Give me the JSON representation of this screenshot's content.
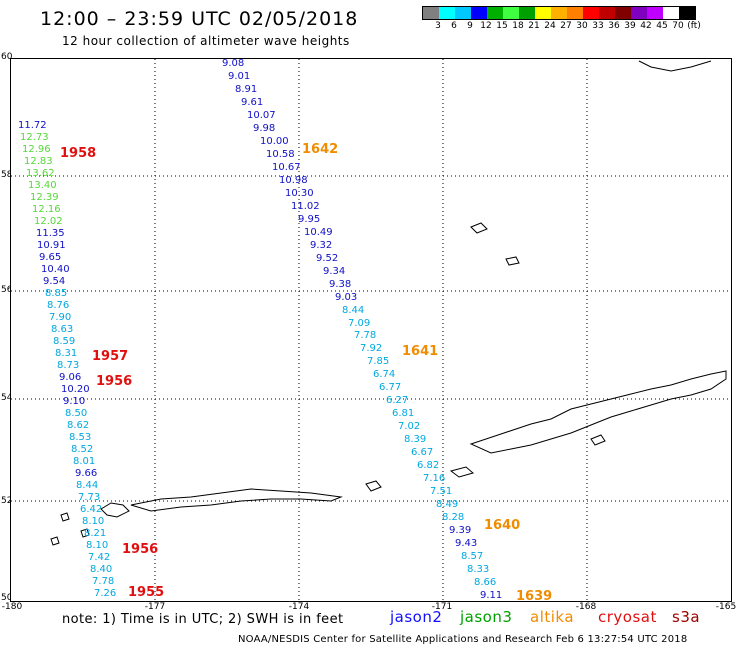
{
  "header": {
    "title": "12:00 – 23:59 UTC 02/05/2018",
    "subtitle": "12 hour collection of altimeter wave heights"
  },
  "color_scale": {
    "swatches": [
      "#808080",
      "#00ffff",
      "#00c8ff",
      "#0000ff",
      "#00b000",
      "#40ff40",
      "#00a000",
      "#ffff00",
      "#ffb000",
      "#ff8000",
      "#ff0000",
      "#c00000",
      "#800000",
      "#8000c0",
      "#c000ff",
      "#ffffff",
      "#000000"
    ],
    "labels": [
      "3",
      "6",
      "9",
      "12",
      "15",
      "18",
      "21",
      "24",
      "27",
      "30",
      "33",
      "36",
      "39",
      "42",
      "45",
      "70",
      "(ft)"
    ]
  },
  "map": {
    "y_ticks": [
      "60",
      "58",
      "56",
      "54",
      "52",
      "50"
    ],
    "x_ticks": [
      "-180",
      "-177",
      "-174",
      "-171",
      "-168",
      "-165"
    ],
    "pass_1958": [
      {
        "v": "11.72",
        "c": "blue"
      },
      {
        "v": "12.73",
        "c": "green"
      },
      {
        "v": "12.96",
        "c": "green"
      },
      {
        "v": "12.83",
        "c": "green"
      },
      {
        "v": "13.62",
        "c": "green"
      },
      {
        "v": "13.40",
        "c": "green"
      },
      {
        "v": "12.39",
        "c": "green"
      },
      {
        "v": "12.16",
        "c": "green"
      },
      {
        "v": "12.02",
        "c": "green"
      },
      {
        "v": "11.35",
        "c": "blue"
      },
      {
        "v": "10.91",
        "c": "blue"
      },
      {
        "v": "9.65",
        "c": "blue"
      },
      {
        "v": "10.40",
        "c": "blue"
      },
      {
        "v": "9.54",
        "c": "blue"
      },
      {
        "v": "8.85",
        "c": "cyan"
      },
      {
        "v": "8.76",
        "c": "cyan"
      },
      {
        "v": "7.90",
        "c": "cyan"
      },
      {
        "v": "8.63",
        "c": "cyan"
      },
      {
        "v": "8.59",
        "c": "cyan"
      },
      {
        "v": "8.31",
        "c": "cyan"
      },
      {
        "v": "8.73",
        "c": "cyan"
      },
      {
        "v": "9.06",
        "c": "blue"
      },
      {
        "v": "10.20",
        "c": "blue"
      },
      {
        "v": "9.10",
        "c": "blue"
      },
      {
        "v": "8.50",
        "c": "cyan"
      },
      {
        "v": "8.62",
        "c": "cyan"
      },
      {
        "v": "8.53",
        "c": "cyan"
      },
      {
        "v": "8.52",
        "c": "cyan"
      },
      {
        "v": "8.01",
        "c": "cyan"
      },
      {
        "v": "9.66",
        "c": "blue"
      },
      {
        "v": "8.44",
        "c": "cyan"
      },
      {
        "v": "7.73",
        "c": "cyan"
      },
      {
        "v": "6.42",
        "c": "cyan"
      },
      {
        "v": "8.10",
        "c": "cyan"
      },
      {
        "v": "8.21",
        "c": "cyan"
      },
      {
        "v": "8.10",
        "c": "cyan"
      },
      {
        "v": "7.42",
        "c": "cyan"
      },
      {
        "v": "8.40",
        "c": "cyan"
      },
      {
        "v": "7.78",
        "c": "cyan"
      },
      {
        "v": "7.26",
        "c": "cyan"
      }
    ],
    "pass_1642": [
      {
        "v": "9.08",
        "c": "blue"
      },
      {
        "v": "9.01",
        "c": "blue"
      },
      {
        "v": "8.91",
        "c": "blue"
      },
      {
        "v": "9.61",
        "c": "blue"
      },
      {
        "v": "10.07",
        "c": "blue"
      },
      {
        "v": "9.98",
        "c": "blue"
      },
      {
        "v": "10.00",
        "c": "blue"
      },
      {
        "v": "10.58",
        "c": "blue"
      },
      {
        "v": "10.67",
        "c": "blue"
      },
      {
        "v": "10.98",
        "c": "blue"
      },
      {
        "v": "10.30",
        "c": "blue"
      },
      {
        "v": "11.02",
        "c": "blue"
      },
      {
        "v": "9.95",
        "c": "blue"
      },
      {
        "v": "10.49",
        "c": "blue"
      },
      {
        "v": "9.32",
        "c": "blue"
      },
      {
        "v": "9.52",
        "c": "blue"
      },
      {
        "v": "9.34",
        "c": "blue"
      },
      {
        "v": "9.38",
        "c": "blue"
      },
      {
        "v": "9.03",
        "c": "blue"
      },
      {
        "v": "8.44",
        "c": "cyan"
      },
      {
        "v": "7.09",
        "c": "cyan"
      },
      {
        "v": "7.78",
        "c": "cyan"
      },
      {
        "v": "7.92",
        "c": "cyan"
      },
      {
        "v": "7.85",
        "c": "cyan"
      },
      {
        "v": "6.74",
        "c": "cyan"
      },
      {
        "v": "6.77",
        "c": "cyan"
      },
      {
        "v": "6.27",
        "c": "cyan"
      },
      {
        "v": "6.81",
        "c": "cyan"
      },
      {
        "v": "7.02",
        "c": "cyan"
      },
      {
        "v": "8.39",
        "c": "cyan"
      },
      {
        "v": "6.67",
        "c": "cyan"
      },
      {
        "v": "6.82",
        "c": "cyan"
      },
      {
        "v": "7.16",
        "c": "cyan"
      },
      {
        "v": "7.51",
        "c": "cyan"
      },
      {
        "v": "8.49",
        "c": "cyan"
      },
      {
        "v": "8.28",
        "c": "cyan"
      },
      {
        "v": "9.39",
        "c": "blue"
      },
      {
        "v": "9.43",
        "c": "blue"
      },
      {
        "v": "8.57",
        "c": "cyan"
      },
      {
        "v": "8.33",
        "c": "cyan"
      },
      {
        "v": "8.66",
        "c": "cyan"
      },
      {
        "v": "9.11",
        "c": "blue"
      }
    ],
    "time_labels": {
      "t1958": "1958",
      "t1957": "1957",
      "t1956a": "1956",
      "t1956b": "1956",
      "t1955": "1955",
      "t1642": "1642",
      "t1641": "1641",
      "t1640": "1640",
      "t1639": "1639"
    },
    "colors": {
      "blue": "#1010c8",
      "cyan": "#00a8e0",
      "green": "#55d838",
      "red": "#e01010",
      "orange": "#f08c00"
    }
  },
  "bottom": {
    "note": "note:  1) Time is in UTC; 2) SWH is in feet",
    "satellites": [
      {
        "name": "jason2",
        "color": "#1010ff"
      },
      {
        "name": "jason3",
        "color": "#00a000"
      },
      {
        "name": "altika",
        "color": "#f08c00"
      },
      {
        "name": "cryosat",
        "color": "#e01010"
      },
      {
        "name": "s3a",
        "color": "#a00000"
      }
    ],
    "footer": "NOAA/NESDIS Center for Satellite Applications and Research    Feb  6 13:27:54 UTC 2018"
  }
}
